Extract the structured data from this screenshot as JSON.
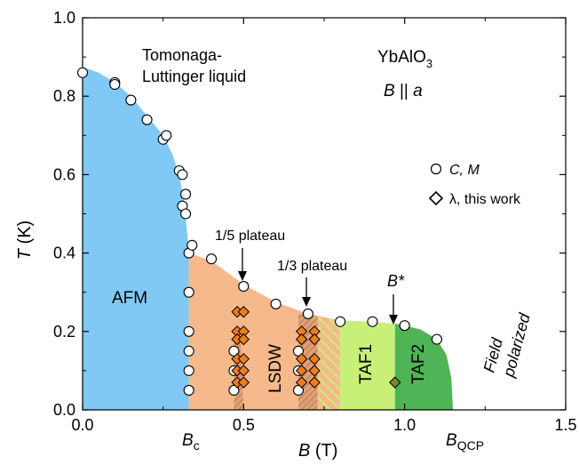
{
  "chart_data": {
    "type": "scatter",
    "xlabel": {
      "var": "B",
      "unit": " (T)"
    },
    "ylabel": {
      "var": "T",
      "unit": " (K)"
    },
    "xlim": [
      0,
      1.5
    ],
    "ylim": [
      0,
      1.0
    ],
    "xticks": [
      "0.0",
      "0.5",
      "1.0",
      "1.5"
    ],
    "xtick_values": [
      0,
      0.5,
      1.0,
      1.5
    ],
    "yticks": [
      "0.0",
      "0.2",
      "0.4",
      "0.6",
      "0.8",
      "1.0"
    ],
    "ytick_values": [
      0,
      0.2,
      0.4,
      0.6,
      0.8,
      1.0
    ],
    "grid": false,
    "legend_position": "right",
    "annotations": {
      "tll_line1": "Tomonaga-",
      "tll_line2": "Luttinger liquid",
      "compound": "YbAlO",
      "compound_sub": "3",
      "field_dir_var": "B",
      "field_dir_rest": " || ",
      "field_dir_axis": "a",
      "plateau_15": "1/5 plateau",
      "plateau_13": "1/3 plateau",
      "bstar": "B*",
      "bc": "B",
      "bc_sub": "c",
      "bqcp": "B",
      "bqcp_sub": "QCP"
    },
    "phases": {
      "afm": "AFM",
      "lsdw": "LSDW",
      "taf1": "TAF1",
      "taf2": "TAF2",
      "field1": "Field",
      "field2": "polarized"
    },
    "colors": {
      "afm": "#7fc9f4",
      "lsdw": "#f6b98b",
      "taf1": "#c8f078",
      "taf2": "#4fb456",
      "hatch": "#b08a70",
      "diamond_fill": "#f07d1a",
      "diamond_green": "#6f8e2a"
    },
    "series": [
      {
        "name": "C, M",
        "marker": "circle",
        "points": [
          [
            0.0,
            0.86
          ],
          [
            0.1,
            0.835
          ],
          [
            0.1,
            0.83
          ],
          [
            0.15,
            0.79
          ],
          [
            0.2,
            0.74
          ],
          [
            0.25,
            0.69
          ],
          [
            0.26,
            0.7
          ],
          [
            0.3,
            0.61
          ],
          [
            0.31,
            0.6
          ],
          [
            0.32,
            0.55
          ],
          [
            0.31,
            0.52
          ],
          [
            0.32,
            0.5
          ],
          [
            0.33,
            0.4
          ],
          [
            0.34,
            0.42
          ],
          [
            0.4,
            0.385
          ],
          [
            0.33,
            0.3
          ],
          [
            0.33,
            0.2
          ],
          [
            0.33,
            0.15
          ],
          [
            0.33,
            0.1
          ],
          [
            0.33,
            0.05
          ],
          [
            0.5,
            0.315
          ],
          [
            0.6,
            0.27
          ],
          [
            0.7,
            0.245
          ],
          [
            0.8,
            0.225
          ],
          [
            0.9,
            0.225
          ],
          [
            1.0,
            0.215
          ],
          [
            1.1,
            0.18
          ],
          [
            0.47,
            0.15
          ],
          [
            0.47,
            0.1
          ],
          [
            0.47,
            0.05
          ],
          [
            0.67,
            0.15
          ],
          [
            0.67,
            0.1
          ],
          [
            0.67,
            0.05
          ]
        ]
      },
      {
        "name": "λ, this work",
        "marker": "diamond",
        "points": [
          [
            0.48,
            0.25
          ],
          [
            0.5,
            0.25
          ],
          [
            0.48,
            0.2
          ],
          [
            0.5,
            0.2
          ],
          [
            0.48,
            0.18
          ],
          [
            0.5,
            0.18
          ],
          [
            0.48,
            0.13
          ],
          [
            0.5,
            0.13
          ],
          [
            0.48,
            0.1
          ],
          [
            0.5,
            0.1
          ],
          [
            0.48,
            0.07
          ],
          [
            0.5,
            0.07
          ],
          [
            0.68,
            0.2
          ],
          [
            0.72,
            0.2
          ],
          [
            0.68,
            0.18
          ],
          [
            0.72,
            0.18
          ],
          [
            0.68,
            0.13
          ],
          [
            0.72,
            0.13
          ],
          [
            0.68,
            0.1
          ],
          [
            0.72,
            0.1
          ],
          [
            0.68,
            0.07
          ],
          [
            0.72,
            0.07
          ],
          [
            0.97,
            0.07
          ]
        ]
      }
    ]
  }
}
